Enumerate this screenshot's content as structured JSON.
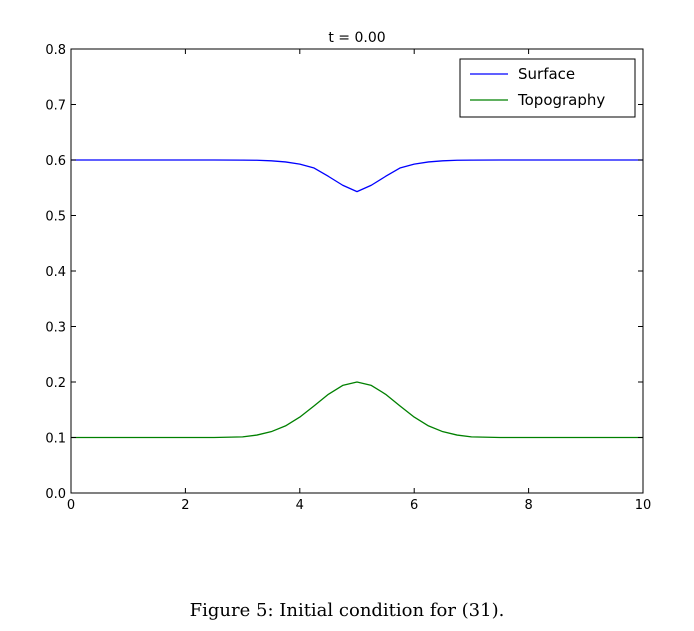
{
  "caption": "Figure 5: Initial condition for (31).",
  "chart_data": {
    "type": "line",
    "title": "t = 0.00",
    "xlabel": "",
    "ylabel": "",
    "xlim": [
      0,
      10
    ],
    "ylim": [
      0.0,
      0.8
    ],
    "xticks": [
      0,
      2,
      4,
      6,
      8,
      10
    ],
    "xtick_labels": [
      "0",
      "2",
      "4",
      "6",
      "8",
      "10"
    ],
    "yticks": [
      0.0,
      0.1,
      0.2,
      0.3,
      0.4,
      0.5,
      0.6,
      0.7,
      0.8
    ],
    "ytick_labels": [
      "0.0",
      "0.1",
      "0.2",
      "0.3",
      "0.4",
      "0.5",
      "0.6",
      "0.7",
      "0.8"
    ],
    "grid": false,
    "legend": "top-right",
    "x": [
      0,
      0.5,
      1,
      1.5,
      2,
      2.5,
      3,
      3.25,
      3.5,
      3.75,
      4,
      4.25,
      4.5,
      4.75,
      5,
      5.25,
      5.5,
      5.75,
      6,
      6.25,
      6.5,
      6.75,
      7,
      7.5,
      8,
      8.5,
      9,
      9.5,
      10
    ],
    "series": [
      {
        "name": "Surface",
        "color": "#0000ff",
        "values": [
          0.6,
          0.6,
          0.6,
          0.6,
          0.6,
          0.6,
          0.5998,
          0.5995,
          0.5985,
          0.5965,
          0.5925,
          0.5855,
          0.5705,
          0.5545,
          0.543,
          0.5545,
          0.5705,
          0.5855,
          0.5925,
          0.5965,
          0.5985,
          0.5995,
          0.5998,
          0.6,
          0.6,
          0.6,
          0.6,
          0.6,
          0.6
        ]
      },
      {
        "name": "Topography",
        "color": "#008000",
        "values": [
          0.1,
          0.1,
          0.1,
          0.1,
          0.1,
          0.1,
          0.1011,
          0.1044,
          0.1105,
          0.1209,
          0.1368,
          0.157,
          0.1779,
          0.1939,
          0.2,
          0.1939,
          0.1779,
          0.157,
          0.1368,
          0.1209,
          0.1105,
          0.1044,
          0.1011,
          0.1,
          0.1,
          0.1,
          0.1,
          0.1,
          0.1
        ]
      }
    ]
  }
}
